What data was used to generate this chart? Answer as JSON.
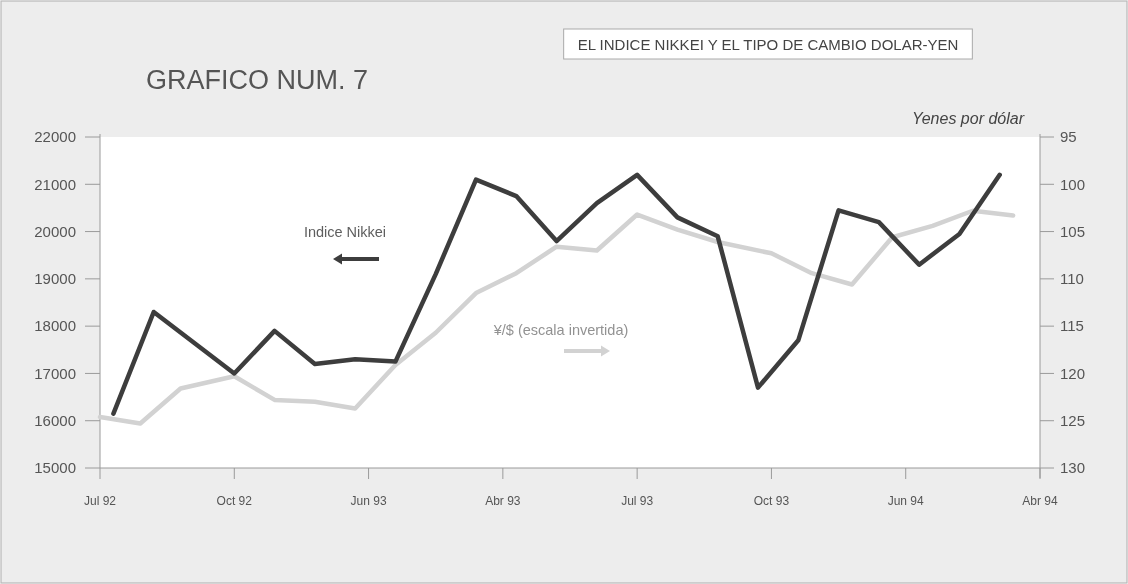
{
  "chart_data": {
    "type": "line",
    "title": "GRAFICO NUM. 7",
    "subtitle": "EL INDICE NIKKEI Y EL TIPO DE CAMBIO DOLAR-YEN",
    "y2label": "Yenes por dólar",
    "categories": [
      "Jul 92",
      null,
      null,
      null,
      null,
      null,
      null,
      null,
      null,
      null,
      "Oct 92",
      null,
      null,
      null,
      null,
      null,
      null,
      null,
      null,
      null,
      "Jun 93",
      null,
      null,
      null,
      null,
      null,
      null,
      null,
      null,
      null,
      "Abr 93",
      null,
      null,
      null,
      null,
      null,
      null,
      null,
      null,
      null,
      "Jul 93",
      null,
      null,
      null,
      null,
      null,
      null,
      null,
      null,
      null,
      "Oct 93",
      null,
      null,
      null,
      null,
      null,
      null,
      null,
      null,
      null,
      "Jun 94",
      null,
      null,
      null,
      null,
      null,
      null,
      null,
      null,
      null,
      "Abr 94"
    ],
    "ylim": [
      15000,
      22000
    ],
    "yticks": [
      15000,
      16000,
      17000,
      18000,
      19000,
      20000,
      21000,
      22000
    ],
    "y2lim": [
      130,
      95
    ],
    "y2ticks": [
      95,
      100,
      105,
      110,
      115,
      120,
      125,
      130
    ],
    "series": [
      {
        "name": "Indice Nikkei",
        "color": "#3d3d3d",
        "values": [
          null,
          16150,
          null,
          null,
          18300,
          null,
          null,
          17650,
          null,
          null,
          17000,
          null,
          null,
          17900,
          null,
          null,
          17200,
          null,
          null,
          17300,
          null,
          null,
          17250,
          null,
          null,
          19100,
          null,
          null,
          21100,
          null,
          null,
          20750,
          null,
          null,
          19800,
          null,
          null,
          20600,
          null,
          null,
          21200,
          null,
          null,
          20300,
          null,
          null,
          19900,
          null,
          null,
          16700,
          null,
          null,
          17700,
          null,
          null,
          20450,
          null,
          null,
          20200,
          null,
          null,
          19300,
          null,
          null,
          19950,
          null,
          null,
          21200,
          null,
          null,
          null
        ]
      },
      {
        "name": "¥/$ (escala invertida)",
        "color": "#d2d2d2",
        "axis": "y2",
        "values": [
          124.6,
          null,
          null,
          125.3,
          null,
          null,
          121.6,
          null,
          null,
          null,
          120.3,
          null,
          null,
          122.8,
          null,
          null,
          123.0,
          null,
          null,
          123.7,
          null,
          null,
          119.1,
          null,
          null,
          115.7,
          null,
          null,
          111.5,
          null,
          null,
          109.4,
          null,
          null,
          106.6,
          null,
          null,
          107.0,
          null,
          null,
          103.2,
          null,
          null,
          104.8,
          null,
          null,
          106.1,
          null,
          null,
          null,
          107.3,
          null,
          null,
          109.4,
          null,
          null,
          110.6,
          null,
          null,
          105.6,
          null,
          null,
          104.4,
          null,
          null,
          102.8,
          null,
          null,
          103.3,
          null,
          null
        ]
      }
    ]
  }
}
